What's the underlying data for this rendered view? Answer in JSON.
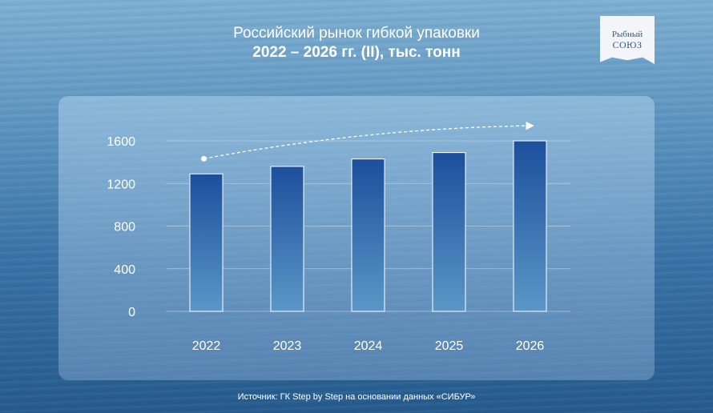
{
  "title": {
    "line1": "Российский рынок гибкой упаковки",
    "line2": "2022 – 2026 гг. (II), тыс. тонн"
  },
  "logo": {
    "line1": "Рыбный",
    "line2": "СОЮЗ"
  },
  "source": "Источник: ГК Step by Step на основании данных «СИБУР»",
  "colors": {
    "bar_top": "#1c4f9c",
    "bar_bottom": "#5a97c7",
    "bar_border": "#ffffff",
    "grid": "#c9dcec"
  },
  "chart_data": {
    "type": "bar",
    "categories": [
      "2022",
      "2023",
      "2024",
      "2025",
      "2026"
    ],
    "values": [
      1290,
      1360,
      1430,
      1490,
      1600
    ],
    "ylim": [
      0,
      1600
    ],
    "yticks": [
      0,
      400,
      800,
      1200,
      1600
    ],
    "grid": true,
    "trend_arrow": true
  }
}
